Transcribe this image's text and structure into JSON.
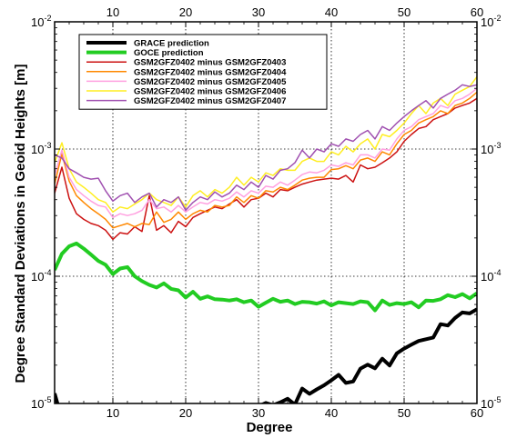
{
  "chart_data": {
    "type": "line",
    "xlabel": "Degree",
    "ylabel": "Degree Standard Deviations in Geoid Heights [m]",
    "xlim": [
      2,
      60
    ],
    "ylim": [
      1e-05,
      0.01
    ],
    "yscale": "log",
    "grid": true,
    "legend_position": "top-left",
    "x_ticks": [
      10,
      20,
      30,
      40,
      50,
      60
    ],
    "x_tick_labels": [
      "10",
      "20",
      "30",
      "40",
      "50",
      "60"
    ],
    "y_ticks": [
      1e-05,
      0.0001,
      0.001,
      0.01
    ],
    "y_tick_labels": [
      {
        "base": "10",
        "exp": "-5"
      },
      {
        "base": "10",
        "exp": "-4"
      },
      {
        "base": "10",
        "exp": "-3"
      },
      {
        "base": "10",
        "exp": "-2"
      }
    ],
    "series": [
      {
        "name": "GRACE prediction",
        "color": "#000000",
        "width": 4,
        "x": [
          2,
          2.5,
          30,
          31,
          32,
          33,
          34,
          35,
          36,
          37,
          38,
          39,
          40,
          41,
          42,
          43,
          44,
          45,
          46,
          47,
          48,
          49,
          50,
          51,
          52,
          53,
          54,
          55,
          56,
          57,
          58,
          59,
          60
        ],
        "y": [
          1.2e-05,
          9.5e-06,
          9.5e-06,
          1.01e-05,
          9.7e-06,
          1.02e-05,
          1.09e-05,
          9.8e-06,
          1.31e-05,
          1.19e-05,
          1.29e-05,
          1.39e-05,
          1.52e-05,
          1.68e-05,
          1.45e-05,
          1.49e-05,
          1.88e-05,
          2.02e-05,
          1.89e-05,
          2.25e-05,
          1.99e-05,
          2.48e-05,
          2.7e-05,
          2.9e-05,
          3.1e-05,
          3.2e-05,
          3.3e-05,
          4.2e-05,
          4.1e-05,
          4.7e-05,
          5.2e-05,
          5.1e-05,
          5.5e-05
        ]
      },
      {
        "name": "GOCE prediction",
        "color": "#22cc22",
        "width": 4,
        "x": [
          2,
          3,
          4,
          5,
          6,
          7,
          8,
          9,
          10,
          11,
          12,
          13,
          14,
          15,
          16,
          17,
          18,
          19,
          20,
          21,
          22,
          23,
          24,
          25,
          26,
          27,
          28,
          29,
          30,
          31,
          32,
          33,
          34,
          35,
          36,
          37,
          38,
          39,
          40,
          41,
          42,
          43,
          44,
          45,
          46,
          47,
          48,
          49,
          50,
          51,
          52,
          53,
          54,
          55,
          56,
          57,
          58,
          59,
          60
        ],
        "y": [
          0.000112,
          0.00015,
          0.000172,
          0.000181,
          0.000165,
          0.000148,
          0.000132,
          0.000123,
          0.000104,
          0.000115,
          0.000118,
          0.0001,
          9.15e-05,
          8.55e-05,
          8.15e-05,
          8.8e-05,
          7.95e-05,
          7.75e-05,
          6.8e-05,
          7.55e-05,
          6.65e-05,
          6.95e-05,
          6.6e-05,
          6.55e-05,
          6.45e-05,
          6.6e-05,
          6.25e-05,
          6.45e-05,
          5.75e-05,
          6.2e-05,
          6.65e-05,
          6.3e-05,
          6.45e-05,
          6.05e-05,
          6.3e-05,
          6.25e-05,
          6.1e-05,
          6.35e-05,
          5.9e-05,
          6.25e-05,
          6.15e-05,
          6.05e-05,
          6.35e-05,
          6.25e-05,
          5.4e-05,
          6.45e-05,
          5.95e-05,
          6.15e-05,
          6.05e-05,
          6.25e-05,
          5.7e-05,
          6.45e-05,
          6.4e-05,
          6.6e-05,
          7.1e-05,
          6.85e-05,
          7.25e-05,
          6.7e-05,
          7.35e-05
        ]
      },
      {
        "name": "GSM2GFZ0402 minus GSM2GFZ0403",
        "color": "#cc1111",
        "width": 1.5,
        "x": [
          2,
          3,
          4,
          5,
          6,
          7,
          8,
          9,
          10,
          11,
          12,
          13,
          14,
          15,
          16,
          17,
          18,
          19,
          20,
          21,
          22,
          23,
          24,
          25,
          26,
          27,
          28,
          29,
          30,
          31,
          32,
          33,
          34,
          35,
          36,
          37,
          38,
          39,
          40,
          41,
          42,
          43,
          44,
          45,
          46,
          47,
          48,
          49,
          50,
          51,
          52,
          53,
          54,
          55,
          56,
          57,
          58,
          59,
          60
        ],
        "y": [
          0.00045,
          0.00072,
          0.00041,
          0.00031,
          0.00028,
          0.00026,
          0.00025,
          0.00023,
          0.000195,
          0.00022,
          0.000215,
          0.000245,
          0.000225,
          0.00043,
          0.00023,
          0.00025,
          0.00022,
          0.00027,
          0.000245,
          0.00029,
          0.00031,
          0.00033,
          0.00035,
          0.00034,
          0.00037,
          0.0004,
          0.00035,
          0.0004,
          0.00041,
          0.00045,
          0.00042,
          0.00048,
          0.00047,
          0.0005,
          0.00053,
          0.00055,
          0.00057,
          0.00058,
          0.00059,
          0.00058,
          0.00062,
          0.00055,
          0.00075,
          0.0007,
          0.00072,
          0.00078,
          0.00085,
          0.00095,
          0.00115,
          0.0013,
          0.00145,
          0.0015,
          0.0017,
          0.0018,
          0.0019,
          0.0021,
          0.0022,
          0.0023,
          0.0025
        ]
      },
      {
        "name": "GSM2GFZ0402 minus GSM2GFZ0404",
        "color": "#ff8800",
        "width": 1.5,
        "x": [
          2,
          3,
          4,
          5,
          6,
          7,
          8,
          9,
          10,
          11,
          12,
          13,
          14,
          15,
          16,
          17,
          18,
          19,
          20,
          21,
          22,
          23,
          24,
          25,
          26,
          27,
          28,
          29,
          30,
          31,
          32,
          33,
          34,
          35,
          36,
          37,
          38,
          39,
          40,
          41,
          42,
          43,
          44,
          45,
          46,
          47,
          48,
          49,
          50,
          51,
          52,
          53,
          54,
          55,
          56,
          57,
          58,
          59,
          60
        ],
        "y": [
          0.00053,
          0.00092,
          0.00056,
          0.00043,
          0.00038,
          0.00034,
          0.00031,
          0.00028,
          0.00024,
          0.00025,
          0.00026,
          0.000245,
          0.00026,
          0.000255,
          0.00032,
          0.000265,
          0.00028,
          0.00032,
          0.00028,
          0.00031,
          0.00033,
          0.00032,
          0.00036,
          0.00035,
          0.00036,
          0.00042,
          0.00038,
          0.00043,
          0.00041,
          0.00047,
          0.00046,
          0.0005,
          0.00048,
          0.00052,
          0.00057,
          0.00059,
          0.0006,
          0.0006,
          0.00069,
          0.0007,
          0.00074,
          0.0007,
          0.00082,
          0.00085,
          0.0008,
          0.00095,
          0.0009,
          0.0011,
          0.0013,
          0.0014,
          0.0016,
          0.0017,
          0.0018,
          0.002,
          0.0019,
          0.0022,
          0.0023,
          0.0025,
          0.0028
        ]
      },
      {
        "name": "GSM2GFZ0402 minus GSM2GFZ0405",
        "color": "#ffa0e0",
        "width": 1.5,
        "x": [
          2,
          3,
          4,
          5,
          6,
          7,
          8,
          9,
          10,
          11,
          12,
          13,
          14,
          15,
          16,
          17,
          18,
          19,
          20,
          21,
          22,
          23,
          24,
          25,
          26,
          27,
          28,
          29,
          30,
          31,
          32,
          33,
          34,
          35,
          36,
          37,
          38,
          39,
          40,
          41,
          42,
          43,
          44,
          45,
          46,
          47,
          48,
          49,
          50,
          51,
          52,
          53,
          54,
          55,
          56,
          57,
          58,
          59,
          60
        ],
        "y": [
          0.00062,
          0.00098,
          0.0006,
          0.00048,
          0.00043,
          0.00039,
          0.00036,
          0.00035,
          0.00029,
          0.00031,
          0.0003,
          0.00031,
          0.00033,
          0.0004,
          0.00034,
          0.00035,
          0.00032,
          0.00036,
          0.00032,
          0.00035,
          0.00038,
          0.00037,
          0.0004,
          0.00039,
          0.00041,
          0.00046,
          0.00042,
          0.00047,
          0.00045,
          0.00051,
          0.0005,
          0.00055,
          0.00052,
          0.00057,
          0.00063,
          0.00066,
          0.00065,
          0.00068,
          0.00075,
          0.00073,
          0.00078,
          0.00075,
          0.0009,
          0.0009,
          0.00085,
          0.001,
          0.00098,
          0.0012,
          0.0014,
          0.0015,
          0.0017,
          0.0018,
          0.0019,
          0.0022,
          0.0021,
          0.0024,
          0.0025,
          0.0027,
          0.003
        ]
      },
      {
        "name": "GSM2GFZ0402 minus GSM2GFZ0406",
        "color": "#ffee22",
        "width": 1.5,
        "x": [
          2,
          3,
          4,
          5,
          6,
          7,
          8,
          9,
          10,
          11,
          12,
          13,
          14,
          15,
          16,
          17,
          18,
          19,
          20,
          21,
          22,
          23,
          24,
          25,
          26,
          27,
          28,
          29,
          30,
          31,
          32,
          33,
          34,
          35,
          36,
          37,
          38,
          39,
          40,
          41,
          42,
          43,
          44,
          45,
          46,
          47,
          48,
          49,
          50,
          51,
          52,
          53,
          54,
          55,
          56,
          57,
          58,
          59,
          60
        ],
        "y": [
          0.00078,
          0.00112,
          0.0007,
          0.00055,
          0.0005,
          0.00045,
          0.0004,
          0.00038,
          0.00032,
          0.00035,
          0.00034,
          0.00037,
          0.0004,
          0.00045,
          0.0004,
          0.00038,
          0.00036,
          0.00042,
          0.00035,
          0.00043,
          0.00047,
          0.00042,
          0.00048,
          0.00045,
          0.0005,
          0.0006,
          0.00052,
          0.0006,
          0.00055,
          0.00065,
          0.00062,
          0.0007,
          0.00068,
          0.00068,
          0.0008,
          0.00085,
          0.0008,
          0.0008,
          0.00095,
          0.0009,
          0.00105,
          0.00095,
          0.0011,
          0.0012,
          0.001,
          0.0013,
          0.00125,
          0.0014,
          0.0016,
          0.0019,
          0.0022,
          0.0019,
          0.0023,
          0.0025,
          0.0022,
          0.0027,
          0.0029,
          0.0031,
          0.0037
        ]
      },
      {
        "name": "GSM2GFZ0402 minus GSM2GFZ0407",
        "color": "#a050b0",
        "width": 1.5,
        "x": [
          2,
          3,
          4,
          5,
          6,
          7,
          8,
          9,
          10,
          11,
          12,
          13,
          14,
          15,
          16,
          17,
          18,
          19,
          20,
          21,
          22,
          23,
          24,
          25,
          26,
          27,
          28,
          29,
          30,
          31,
          32,
          33,
          34,
          35,
          36,
          37,
          38,
          39,
          40,
          41,
          42,
          43,
          44,
          45,
          46,
          47,
          48,
          49,
          50,
          51,
          52,
          53,
          54,
          55,
          56,
          57,
          58,
          59,
          60
        ],
        "y": [
          0.0009,
          0.00085,
          0.0007,
          0.00065,
          0.0006,
          0.00058,
          0.00059,
          0.00047,
          0.00039,
          0.00043,
          0.00045,
          0.00038,
          0.00042,
          0.00045,
          0.00035,
          0.0004,
          0.00038,
          0.00042,
          0.00033,
          0.00038,
          0.00042,
          0.0004,
          0.00046,
          0.00042,
          0.00045,
          0.00052,
          0.00048,
          0.00055,
          0.0005,
          0.00062,
          0.00058,
          0.00068,
          0.0007,
          0.00078,
          0.00098,
          0.00085,
          0.001,
          0.00095,
          0.0011,
          0.00105,
          0.0012,
          0.00115,
          0.0013,
          0.0014,
          0.0012,
          0.0015,
          0.0014,
          0.0016,
          0.0018,
          0.002,
          0.0022,
          0.0024,
          0.0021,
          0.0025,
          0.0027,
          0.0029,
          0.0032,
          0.0031,
          0.0032
        ]
      }
    ]
  }
}
